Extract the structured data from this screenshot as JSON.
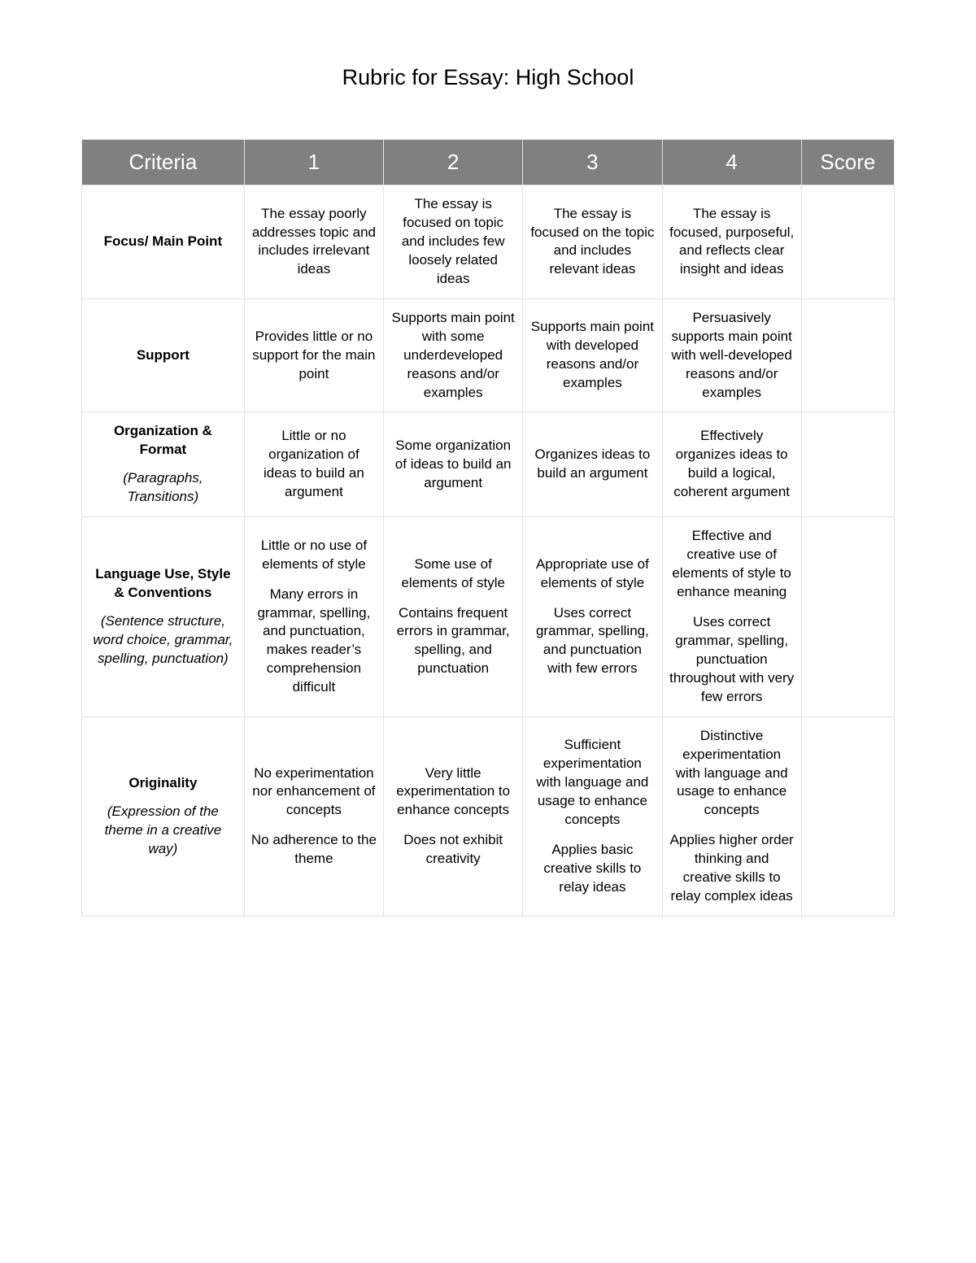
{
  "title": "Rubric for Essay: High School",
  "table": {
    "header_bg": "#808080",
    "header_color": "#ffffff",
    "border_color": "#e0e0e0",
    "columns": [
      "Criteria",
      "1",
      "2",
      "3",
      "4",
      "Score"
    ],
    "rows": [
      {
        "criteria_main": "Focus/ Main Point",
        "criteria_sub": "",
        "levels": [
          "The essay poorly addresses topic and includes irrelevant ideas",
          "The essay is focused on topic and includes few loosely related ideas",
          "The essay is focused on the topic and includes relevant ideas",
          "The essay is focused, purposeful, and reflects clear insight and ideas"
        ],
        "score": ""
      },
      {
        "criteria_main": "Support",
        "criteria_sub": "",
        "levels": [
          "Provides little or no support for the main point",
          "Supports main point with some underdeveloped reasons and/or examples",
          "Supports main point with developed reasons and/or examples",
          "Persuasively supports main point with well-developed reasons and/or examples"
        ],
        "score": ""
      },
      {
        "criteria_main": "Organization & Format",
        "criteria_sub": "(Paragraphs, Transitions)",
        "levels": [
          "Little or no organization of ideas to build an argument",
          "Some organization of ideas to build an argument",
          "Organizes ideas to build an argument",
          "Effectively organizes ideas to build a logical, coherent argument"
        ],
        "score": ""
      },
      {
        "criteria_main": "Language Use, Style & Conventions",
        "criteria_sub": "(Sentence structure, word choice, grammar, spelling, punctuation)",
        "levels": [
          "Little or no use of elements of style|Many errors in grammar, spelling, and punctuation, makes reader’s comprehension difficult",
          "Some use of elements of style|Contains frequent errors in grammar, spelling, and punctuation",
          "Appropriate use of elements of style|Uses correct grammar, spelling, and punctuation with few errors",
          "Effective and creative use of elements of style to enhance meaning|Uses correct grammar, spelling, punctuation throughout with very few errors"
        ],
        "score": ""
      },
      {
        "criteria_main": "Originality",
        "criteria_sub": "(Expression of the theme in a creative way)",
        "levels": [
          "No experimentation nor enhancement of concepts|No adherence to the theme",
          "Very little experimentation to enhance concepts|Does not exhibit creativity",
          "Sufficient experimentation with language and usage to enhance concepts|Applies basic creative skills to relay ideas",
          "Distinctive experimentation with language and usage to enhance concepts|Applies higher order thinking and creative skills to relay complex ideas"
        ],
        "score": ""
      }
    ]
  }
}
